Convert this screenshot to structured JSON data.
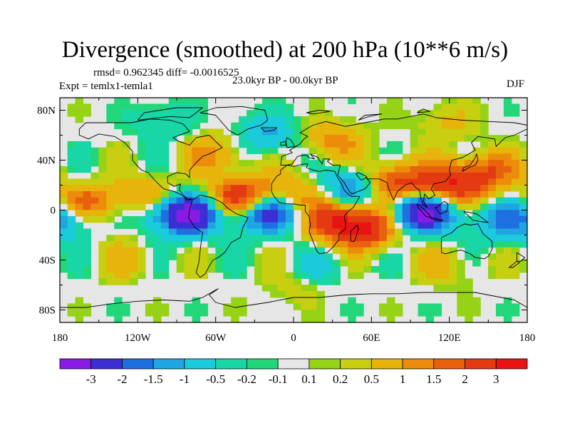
{
  "chart_data": {
    "type": "heatmap",
    "title": "Divergence (smoothed) at 200 hPa (10**6 m/s)",
    "stats": "rmsd= 0.962345 diff= -0.0016525",
    "experiment": "Expt = temlx1-temla1",
    "period": "23.0kyr BP - 00.0kyr BP",
    "season": "DJF",
    "x_ticks": [
      "180",
      "120W",
      "60W",
      "0",
      "60E",
      "120E",
      "180"
    ],
    "y_ticks": [
      "80N",
      "40N",
      "0",
      "40S",
      "80S"
    ],
    "xlim": [
      -180,
      180
    ],
    "ylim": [
      -90,
      90
    ],
    "colorbar": {
      "labels": [
        "-3",
        "-2",
        "-1.5",
        "-1",
        "-0.5",
        "-0.2",
        "-0.1",
        "0.1",
        "0.2",
        "0.5",
        "1",
        "1.5",
        "2",
        "3"
      ],
      "colors": [
        "#8a1be6",
        "#3b2fd4",
        "#1e6fe0",
        "#1fa6e0",
        "#1bcbdc",
        "#18d6a6",
        "#22d77a",
        "#e6e6e6",
        "#96d215",
        "#c8cf10",
        "#e6b40a",
        "#ec8c0a",
        "#e8620d",
        "#e43a12",
        "#e81414"
      ]
    },
    "features": [
      {
        "lon": -160,
        "lat": 4,
        "value": 2.0
      },
      {
        "lon": -172,
        "lat": -4,
        "value": -1.5
      },
      {
        "lon": -110,
        "lat": 12,
        "value": 1.0
      },
      {
        "lon": -90,
        "lat": -2,
        "value": -2.0
      },
      {
        "lon": -75,
        "lat": -5,
        "value": -1.5
      },
      {
        "lon": -40,
        "lat": 10,
        "value": 2.5
      },
      {
        "lon": -20,
        "lat": -2,
        "value": -2.5
      },
      {
        "lon": 0,
        "lat": 14,
        "value": 1.0
      },
      {
        "lon": 30,
        "lat": -8,
        "value": 2.0
      },
      {
        "lon": 45,
        "lat": 18,
        "value": -1.5
      },
      {
        "lon": 55,
        "lat": -15,
        "value": 2.5
      },
      {
        "lon": 78,
        "lat": 22,
        "value": 2.0
      },
      {
        "lon": 100,
        "lat": -2,
        "value": -3.0
      },
      {
        "lon": 120,
        "lat": 20,
        "value": 2.5
      },
      {
        "lon": 150,
        "lat": 30,
        "value": 1.5
      },
      {
        "lon": 160,
        "lat": -10,
        "value": -1.0
      },
      {
        "lon": -60,
        "lat": 45,
        "value": 1.0
      },
      {
        "lon": -20,
        "lat": 60,
        "value": -1.0
      },
      {
        "lon": 30,
        "lat": 55,
        "value": 1.0
      },
      {
        "lon": -100,
        "lat": 70,
        "value": -0.5
      },
      {
        "lon": 120,
        "lat": 70,
        "value": 0.5
      },
      {
        "lon": -130,
        "lat": -40,
        "value": 0.5
      },
      {
        "lon": 20,
        "lat": -45,
        "value": -0.5
      },
      {
        "lon": 120,
        "lat": -45,
        "value": 0.5
      },
      {
        "lon": 0,
        "lat": -62,
        "value": 0.3
      }
    ]
  }
}
